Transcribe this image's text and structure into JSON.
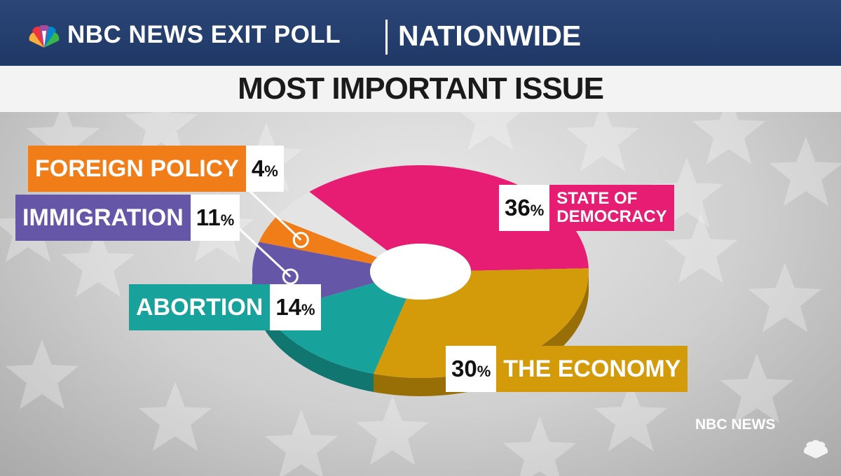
{
  "header": {
    "brand": "NBC NEWS EXIT POLL",
    "region": "NATIONWIDE",
    "title": "MOST IMPORTANT ISSUE"
  },
  "watermark": "NBC NEWS",
  "colors": {
    "header_bg": "#243f70",
    "state_of_democracy": "#e71d73",
    "the_economy": "#d39a0a",
    "abortion": "#17a39b",
    "immigration": "#6656a8",
    "foreign_policy": "#f07d18",
    "other": "#e4e4e4"
  },
  "chart_data": {
    "type": "pie",
    "style": "3d-donut",
    "title": "MOST IMPORTANT ISSUE",
    "slices": [
      {
        "label": "STATE OF DEMOCRACY",
        "label_line1": "STATE OF",
        "label_line2": "DEMOCRACY",
        "value": 36,
        "value_text": "36",
        "color": "#e71d73"
      },
      {
        "label": "THE ECONOMY",
        "value": 30,
        "value_text": "30",
        "color": "#d39a0a"
      },
      {
        "label": "ABORTION",
        "value": 14,
        "value_text": "14",
        "color": "#17a39b"
      },
      {
        "label": "IMMIGRATION",
        "value": 11,
        "value_text": "11",
        "color": "#6656a8"
      },
      {
        "label": "FOREIGN POLICY",
        "value": 4,
        "value_text": "4",
        "color": "#f07d18"
      }
    ],
    "remainder_color": "#e4e4e4",
    "percent_symbol": "%"
  }
}
